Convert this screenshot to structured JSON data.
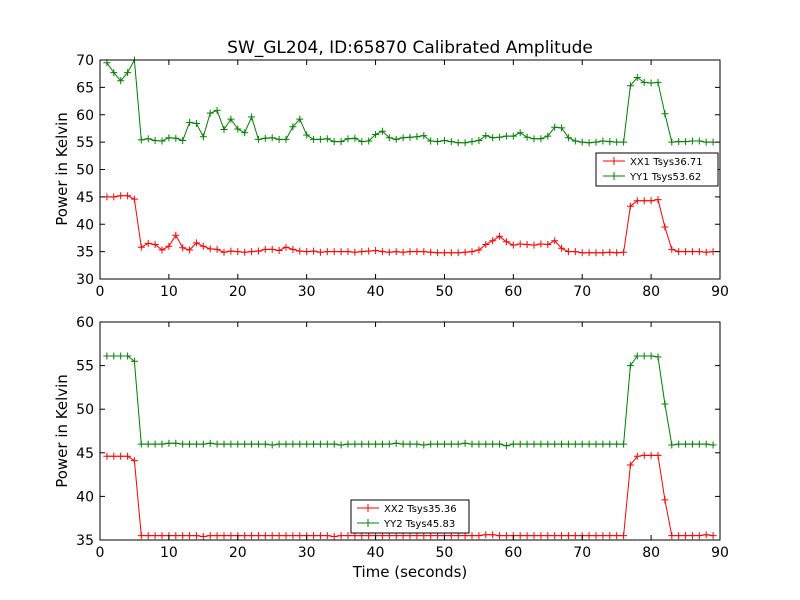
{
  "figure": {
    "title": "SW_GL204, ID:65870 Calibrated Amplitude",
    "xlabel": "Time (seconds)"
  },
  "colors": {
    "red": "#ff0000",
    "green": "#008000",
    "axis": "#000000"
  },
  "chart_data": [
    {
      "type": "line",
      "ylabel": "Power in Kelvin",
      "xlim": [
        0,
        90
      ],
      "ylim": [
        30,
        70
      ],
      "xticks": [
        0,
        10,
        20,
        30,
        40,
        50,
        60,
        70,
        80,
        90
      ],
      "yticks": [
        30,
        35,
        40,
        45,
        50,
        55,
        60,
        65,
        70
      ],
      "legend_position": "right",
      "x": [
        1,
        2,
        3,
        4,
        5,
        6,
        7,
        8,
        9,
        10,
        11,
        12,
        13,
        14,
        15,
        16,
        17,
        18,
        19,
        20,
        21,
        22,
        23,
        24,
        25,
        26,
        27,
        28,
        29,
        30,
        31,
        32,
        33,
        34,
        35,
        36,
        37,
        38,
        39,
        40,
        41,
        42,
        43,
        44,
        45,
        46,
        47,
        48,
        49,
        50,
        51,
        52,
        53,
        54,
        55,
        56,
        57,
        58,
        59,
        60,
        61,
        62,
        63,
        64,
        65,
        66,
        67,
        68,
        69,
        70,
        71,
        72,
        73,
        74,
        75,
        76,
        77,
        78,
        79,
        80,
        81,
        82,
        83,
        84,
        85,
        86,
        87,
        88,
        89
      ],
      "series": [
        {
          "name": "XX1 Tsys36.71",
          "color": "#ff0000",
          "values": [
            45,
            45,
            45.2,
            45.2,
            44.6,
            35.8,
            36.5,
            36.3,
            35.3,
            36,
            38,
            35.7,
            35.3,
            36.6,
            36,
            35.5,
            35.4,
            34.9,
            35.1,
            35,
            34.9,
            35,
            35.1,
            35.4,
            35.4,
            35.2,
            35.8,
            35.4,
            35.1,
            35,
            35.1,
            34.9,
            35,
            35,
            35,
            35,
            34.9,
            35,
            35.1,
            35.2,
            35,
            34.9,
            35,
            34.9,
            35,
            35,
            35,
            34.9,
            34.8,
            34.8,
            34.8,
            34.8,
            34.9,
            35,
            35.3,
            36.3,
            37,
            37.8,
            36.8,
            36.2,
            36.4,
            36.3,
            36.2,
            36.4,
            36.3,
            37,
            35.6,
            35,
            35,
            34.8,
            34.8,
            34.8,
            34.8,
            34.9,
            34.8,
            34.9,
            43.3,
            44.3,
            44.3,
            44.3,
            44.5,
            39.5,
            35.4,
            35,
            35,
            35,
            35,
            34.9,
            35
          ]
        },
        {
          "name": "YY1 Tsys53.62",
          "color": "#008000",
          "values": [
            69.5,
            67.7,
            66.2,
            67.7,
            70,
            55.4,
            55.6,
            55.3,
            55.2,
            55.8,
            55.7,
            55.3,
            58.6,
            58.4,
            56,
            60.3,
            60.8,
            57.3,
            59.2,
            57.4,
            56.7,
            59.6,
            55.5,
            55.7,
            55.8,
            55.5,
            55.5,
            57.8,
            59.2,
            56.3,
            55.5,
            55.5,
            55.6,
            55.1,
            55.1,
            55.6,
            55.7,
            55.1,
            55.2,
            56.4,
            57,
            55.8,
            55.5,
            55.8,
            55.9,
            56,
            56.2,
            55.2,
            55.1,
            55.3,
            55.1,
            54.9,
            54.9,
            55.1,
            55.3,
            56.2,
            55.8,
            55.9,
            56.1,
            56.1,
            56.7,
            55.9,
            55.6,
            55.6,
            56.1,
            57.7,
            57.6,
            55.8,
            55.2,
            55,
            54.9,
            55,
            55.2,
            55.1,
            55,
            55,
            65.3,
            66.8,
            65.9,
            65.8,
            65.9,
            60.2,
            55,
            55.1,
            55.1,
            55.2,
            55.2,
            55,
            55
          ]
        }
      ]
    },
    {
      "type": "line",
      "ylabel": "Power in Kelvin",
      "xlabel": "Time (seconds)",
      "xlim": [
        0,
        90
      ],
      "ylim": [
        35,
        60
      ],
      "xticks": [
        0,
        10,
        20,
        30,
        40,
        50,
        60,
        70,
        80,
        90
      ],
      "yticks": [
        35,
        40,
        45,
        50,
        55,
        60
      ],
      "legend_position": "bottom-center",
      "x": [
        1,
        2,
        3,
        4,
        5,
        6,
        7,
        8,
        9,
        10,
        11,
        12,
        13,
        14,
        15,
        16,
        17,
        18,
        19,
        20,
        21,
        22,
        23,
        24,
        25,
        26,
        27,
        28,
        29,
        30,
        31,
        32,
        33,
        34,
        35,
        36,
        37,
        38,
        39,
        40,
        41,
        42,
        43,
        44,
        45,
        46,
        47,
        48,
        49,
        50,
        51,
        52,
        53,
        54,
        55,
        56,
        57,
        58,
        59,
        60,
        61,
        62,
        63,
        64,
        65,
        66,
        67,
        68,
        69,
        70,
        71,
        72,
        73,
        74,
        75,
        76,
        77,
        78,
        79,
        80,
        81,
        82,
        83,
        84,
        85,
        86,
        87,
        88,
        89
      ],
      "series": [
        {
          "name": "XX2 Tsys35.36",
          "color": "#ff0000",
          "values": [
            44.6,
            44.6,
            44.6,
            44.6,
            44.1,
            35.5,
            35.5,
            35.5,
            35.5,
            35.5,
            35.5,
            35.5,
            35.5,
            35.5,
            35.4,
            35.5,
            35.5,
            35.5,
            35.5,
            35.5,
            35.5,
            35.5,
            35.5,
            35.5,
            35.5,
            35.5,
            35.5,
            35.5,
            35.5,
            35.5,
            35.5,
            35.5,
            35.5,
            35.4,
            35.5,
            35.5,
            35.5,
            35.5,
            35.5,
            35.5,
            35.5,
            35.5,
            35.5,
            35.5,
            35.5,
            35.5,
            35.5,
            35.5,
            35.5,
            35.5,
            35.5,
            35.5,
            35.5,
            35.5,
            35.5,
            35.6,
            35.6,
            35.5,
            35.5,
            35.5,
            35.5,
            35.5,
            35.5,
            35.5,
            35.5,
            35.5,
            35.5,
            35.5,
            35.5,
            35.5,
            35.5,
            35.5,
            35.5,
            35.5,
            35.5,
            35.5,
            43.6,
            44.6,
            44.7,
            44.7,
            44.7,
            39.6,
            35.5,
            35.5,
            35.5,
            35.5,
            35.5,
            35.6,
            35.5
          ]
        },
        {
          "name": "YY2 Tsys45.83",
          "color": "#008000",
          "values": [
            56.1,
            56.1,
            56.1,
            56.1,
            55.5,
            46,
            46,
            46,
            46,
            46.1,
            46.1,
            46,
            46,
            46,
            46,
            46.1,
            46,
            46,
            46,
            46,
            46,
            46,
            46,
            46,
            45.9,
            46,
            46,
            46,
            46,
            46,
            46,
            46,
            46,
            46,
            45.9,
            46,
            46,
            46,
            46,
            46,
            46,
            46,
            46.1,
            46,
            46,
            46,
            45.9,
            46,
            46,
            46,
            46,
            46,
            46.1,
            46,
            46,
            46,
            46,
            46,
            45.8,
            46,
            46,
            46,
            46,
            46,
            46,
            46,
            46,
            46,
            46,
            46,
            46,
            46,
            46,
            46,
            46,
            46,
            55,
            56.1,
            56.1,
            56.1,
            56,
            50.6,
            45.9,
            46,
            46,
            46,
            46,
            46,
            45.9
          ]
        }
      ]
    }
  ]
}
